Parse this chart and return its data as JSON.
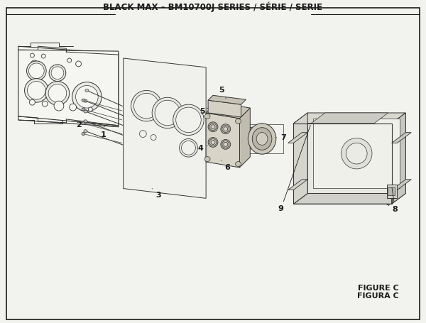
{
  "title": "BLACK MAX – BM10700J SERIES / SÉRIE / SERIE",
  "figure_label": "FIGURE C",
  "figure_label2": "FIGURA C",
  "bg_color": "#f2f2ee",
  "border_color": "#1a1a1a",
  "line_color": "#1a1a1a",
  "draw_color": "#333333",
  "title_fontsize": 8.5,
  "label_fontsize": 7.5
}
